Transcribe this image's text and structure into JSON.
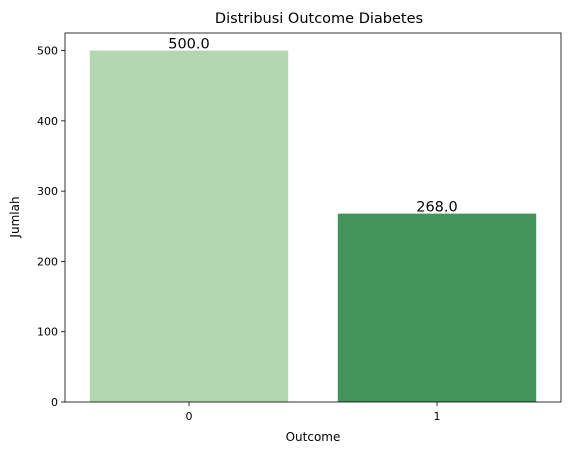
{
  "chart_data": {
    "type": "bar",
    "title": "Distribusi Outcome Diabetes",
    "xlabel": "Outcome",
    "ylabel": "Jumlah",
    "categories": [
      "0",
      "1"
    ],
    "values": [
      500,
      268
    ],
    "value_labels": [
      "500.0",
      "268.0"
    ],
    "colors": [
      "#b3d8b1",
      "#43945b"
    ],
    "ylim": [
      0,
      525
    ],
    "yticks": [
      0,
      100,
      200,
      300,
      400,
      500
    ],
    "ytick_labels": [
      "0",
      "100",
      "200",
      "300",
      "400",
      "500"
    ],
    "grid": false,
    "legend": false
  }
}
